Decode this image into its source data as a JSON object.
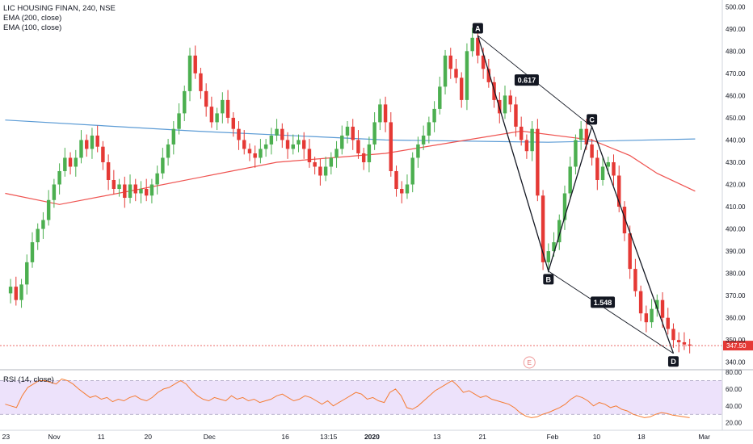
{
  "legend": {
    "symbol": "LIC HOUSING FINAN, 240, NSE",
    "ema200": "EMA (200, close)",
    "ema100": "EMA (100, close)",
    "rsi": "RSI (14, close)"
  },
  "colors": {
    "up": "#4caf50",
    "down": "#e53935",
    "ema200": "#5b9bd5",
    "ema100": "#ef5350",
    "rsi_line": "#f57c33",
    "rsi_band": "#ede2fb",
    "pattern": "#131722",
    "price_tag": "#e53935"
  },
  "chart_data": [
    {
      "type": "candlestick",
      "y_axis": {
        "ticks": [
          "500.00",
          "490.00",
          "480.00",
          "470.00",
          "460.00",
          "450.00",
          "440.00",
          "430.00",
          "420.00",
          "410.00",
          "400.00",
          "390.00",
          "380.00",
          "370.00",
          "360.00",
          "350.00",
          "340.00"
        ],
        "ylim": [
          337,
          503
        ]
      },
      "x_axis": {
        "ticks": [
          "23",
          "Nov",
          "11",
          "20",
          "Dec",
          "16",
          "13:15",
          "2020",
          "13",
          "21",
          "Feb",
          "10",
          "18",
          "Mar"
        ]
      },
      "candle_walk": [
        371,
        374,
        368,
        375,
        385,
        394,
        400,
        404,
        413,
        420,
        426,
        432,
        428,
        432,
        440,
        436,
        442,
        437,
        430,
        422,
        418,
        420,
        414,
        420,
        416,
        418,
        415,
        420,
        425,
        432,
        438,
        445,
        452,
        462,
        478,
        470,
        462,
        455,
        448,
        452,
        458,
        450,
        445,
        440,
        436,
        434,
        432,
        436,
        438,
        442,
        445,
        440,
        436,
        438,
        440,
        436,
        430,
        428,
        424,
        428,
        432,
        436,
        442,
        446,
        440,
        434,
        430,
        438,
        448,
        456,
        448,
        426,
        418,
        416,
        420,
        432,
        438,
        442,
        448,
        454,
        464,
        478,
        472,
        468,
        458,
        480,
        486,
        478,
        472,
        466,
        458,
        452,
        460,
        456,
        446,
        440,
        435,
        445,
        415,
        385,
        390,
        394,
        404,
        416,
        428,
        440,
        445,
        438,
        432,
        422,
        428,
        430,
        424,
        410,
        398,
        382,
        372,
        362,
        358,
        364,
        368,
        360,
        355,
        350,
        349,
        348,
        347.5
      ],
      "current_price": "347.50",
      "ema200": [
        [
          0,
          449
        ],
        [
          35,
          444
        ],
        [
          70,
          440
        ],
        [
          100,
          439
        ],
        [
          127,
          440.5
        ]
      ],
      "ema100": [
        [
          0,
          416
        ],
        [
          10,
          411
        ],
        [
          25,
          418
        ],
        [
          50,
          430
        ],
        [
          70,
          434
        ],
        [
          85,
          440
        ],
        [
          95,
          444
        ],
        [
          108,
          440
        ],
        [
          115,
          433
        ],
        [
          120,
          425
        ],
        [
          127,
          417
        ]
      ],
      "pattern": {
        "points": [
          {
            "label": "A",
            "x": 87,
            "price": 487
          },
          {
            "label": "B",
            "x": 100,
            "price": 381
          },
          {
            "label": "C",
            "x": 108,
            "price": 446
          },
          {
            "label": "D",
            "x": 123,
            "price": 344
          }
        ],
        "ratios": [
          {
            "label": "0.617",
            "x": 96,
            "price": 467
          },
          {
            "label": "1.548",
            "x": 110,
            "price": 367
          }
        ]
      },
      "event_marker": "E"
    },
    {
      "type": "line",
      "name": "RSI (14, close)",
      "y_axis": {
        "ticks": [
          "80.00",
          "60.00",
          "40.00",
          "20.00"
        ],
        "ylim": [
          12,
          82
        ]
      },
      "band": [
        30,
        70
      ],
      "values": [
        42,
        40,
        38,
        52,
        62,
        66,
        70,
        70,
        68,
        66,
        72,
        70,
        66,
        60,
        55,
        50,
        52,
        48,
        50,
        45,
        48,
        46,
        50,
        52,
        48,
        46,
        50,
        56,
        60,
        62,
        66,
        70,
        66,
        58,
        52,
        48,
        46,
        50,
        48,
        46,
        52,
        48,
        50,
        46,
        48,
        44,
        46,
        48,
        52,
        54,
        50,
        46,
        48,
        52,
        50,
        46,
        42,
        46,
        40,
        44,
        48,
        52,
        56,
        54,
        48,
        50,
        46,
        44,
        56,
        60,
        52,
        38,
        36,
        40,
        46,
        52,
        58,
        62,
        66,
        70,
        64,
        56,
        58,
        54,
        50,
        52,
        48,
        46,
        44,
        42,
        38,
        32,
        28,
        26,
        27,
        30,
        32,
        35,
        38,
        42,
        48,
        52,
        50,
        46,
        40,
        44,
        42,
        38,
        40,
        36,
        34,
        30,
        28,
        26,
        27,
        30,
        32,
        31,
        29,
        28,
        27,
        26
      ]
    }
  ]
}
